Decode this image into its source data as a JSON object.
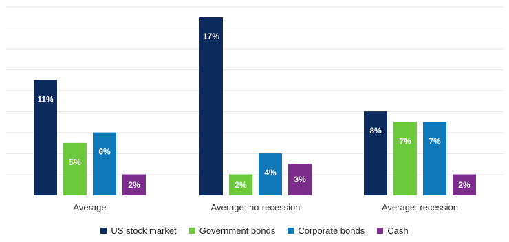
{
  "chart_data": {
    "type": "bar",
    "categories": [
      "Average",
      "Average: no-recession",
      "Average: recession"
    ],
    "series": [
      {
        "name": "US stock market",
        "color": "#0d2a5c",
        "values": [
          11,
          17,
          8
        ],
        "labels": [
          "11%",
          "17%",
          "8%"
        ]
      },
      {
        "name": "Government bonds",
        "color": "#6cc93c",
        "values": [
          5,
          2,
          7
        ],
        "labels": [
          "5%",
          "2%",
          "7%"
        ]
      },
      {
        "name": "Corporate bonds",
        "color": "#0e78b8",
        "values": [
          6,
          4,
          7
        ],
        "labels": [
          "6%",
          "4%",
          "7%"
        ]
      },
      {
        "name": "Cash",
        "color": "#7b2d8b",
        "values": [
          2,
          3,
          2
        ],
        "labels": [
          "2%",
          "3%",
          "2%"
        ]
      }
    ],
    "ylim": [
      0,
      17
    ],
    "grid": true,
    "legend_position": "bottom"
  }
}
